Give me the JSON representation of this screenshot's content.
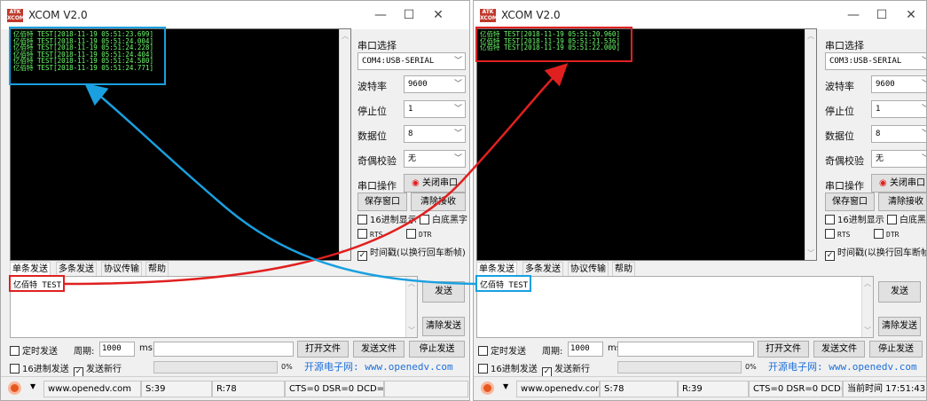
{
  "app_title": "XCOM V2.0",
  "left": {
    "log": [
      "亿佰特 TEST[2018-11-19 05:51:23.699]",
      "亿佰特 TEST[2018-11-19 05:51:24.004]",
      "亿佰特 TEST[2018-11-19 05:51:24.228]",
      "亿佰特 TEST[2018-11-19 05:51:24.404]",
      "亿佰特 TEST[2018-11-19 05:51:24.580]",
      "亿佰特 TEST[2018-11-19 05:51:24.771]"
    ],
    "port": "COM4:USB-SERIAL",
    "send_text": "亿佰特 TEST",
    "status_s": "S:39",
    "status_r": "R:78",
    "status_signals": "CTS=0 DSR=0 DCD=0"
  },
  "right": {
    "log": [
      "亿佰特 TEST[2018-11-19 05:51:20.960]",
      "亿佰特 TEST[2018-11-19 05:51:21.536]",
      "亿佰特 TEST[2018-11-19 05:51:22.000]"
    ],
    "port": "COM3:USB-SERIAL",
    "send_text": "亿佰特 TEST",
    "status_s": "S:78",
    "status_r": "R:39",
    "status_signals": "CTS=0 DSR=0 DCD=0",
    "status_time": "当前时间 17:51:43"
  },
  "labels": {
    "port_select": "串口选择",
    "baud": "波特率",
    "baud_value": "9600",
    "stop": "停止位",
    "stop_value": "1",
    "data": "数据位",
    "data_value": "8",
    "parity": "奇偶校验",
    "parity_value": "无",
    "port_op": "串口操作",
    "close_port": "关闭串口",
    "save_window": "保存窗口",
    "clear_recv": "清除接收",
    "hex_display": "16进制显示",
    "white_black": "白底黑字",
    "rts": "RTS",
    "dtr": "DTR",
    "timestamp": "时间戳(以换行回车断帧)",
    "tab_single": "单条发送",
    "tab_multi": "多条发送",
    "tab_protocol": "协议传输",
    "tab_help": "帮助",
    "send": "发送",
    "clear_send": "清除发送",
    "timed_send": "定时发送",
    "period": "周期:",
    "period_value": "1000",
    "ms": "ms",
    "open_file": "打开文件",
    "send_file": "发送文件",
    "stop_send": "停止发送",
    "hex_send": "16进制发送",
    "send_newline": "发送新行",
    "progress": "0%",
    "website_promo": "开源电子网: www.openedv.com",
    "url": "www.openedv.com"
  },
  "colors": {
    "terminal_bg": "#000000",
    "terminal_text": "#6cff6c",
    "red_annotation": "#e02020",
    "blue_annotation": "#1aa0e0",
    "link": "#1e6fd9"
  }
}
